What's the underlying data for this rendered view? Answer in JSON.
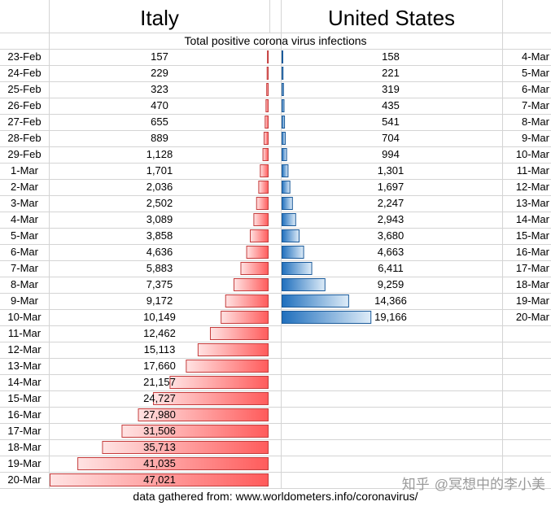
{
  "headers": {
    "left_country": "Italy",
    "right_country": "United States",
    "subtitle": "Total positive corona virus infections",
    "source": "data gathered from:  www.worldometers.info/coronavirus/"
  },
  "watermark": {
    "logo": "知乎",
    "text": "@冥想中的李小美"
  },
  "colors": {
    "italy_bar": "#ff5b5b",
    "us_bar": "#1f6fbd",
    "grid": "#d4d4d4"
  },
  "chart_data": [
    {
      "type": "bar",
      "orientation": "horizontal",
      "title": "Italy",
      "series": [
        {
          "name": "Italy",
          "values": [
            157,
            229,
            323,
            470,
            655,
            889,
            1128,
            1701,
            2036,
            2502,
            3089,
            3858,
            4636,
            5883,
            7375,
            9172,
            10149,
            12462,
            15113,
            17660,
            21157,
            24727,
            27980,
            31506,
            35713,
            41035,
            47021
          ]
        }
      ],
      "categories": [
        "23-Feb",
        "24-Feb",
        "25-Feb",
        "26-Feb",
        "27-Feb",
        "28-Feb",
        "29-Feb",
        "1-Mar",
        "2-Mar",
        "3-Mar",
        "4-Mar",
        "5-Mar",
        "6-Mar",
        "7-Mar",
        "8-Mar",
        "9-Mar",
        "10-Mar",
        "11-Mar",
        "12-Mar",
        "13-Mar",
        "14-Mar",
        "15-Mar",
        "16-Mar",
        "17-Mar",
        "18-Mar",
        "19-Mar",
        "20-Mar"
      ],
      "data_labels": [
        "157",
        "229",
        "323",
        "470",
        "655",
        "889",
        "1,128",
        "1,701",
        "2,036",
        "2,502",
        "3,089",
        "3,858",
        "4,636",
        "5,883",
        "7,375",
        "9,172",
        "10,149",
        "12,462",
        "15,113",
        "17,660",
        "21,157",
        "24,727",
        "27,980",
        "31,506",
        "35,713",
        "41,035",
        "47,021"
      ],
      "xlim": [
        0,
        47021
      ]
    },
    {
      "type": "bar",
      "orientation": "horizontal",
      "title": "United States",
      "series": [
        {
          "name": "United States",
          "values": [
            158,
            221,
            319,
            435,
            541,
            704,
            994,
            1301,
            1697,
            2247,
            2943,
            3680,
            4663,
            6411,
            9259,
            14366,
            19166
          ]
        }
      ],
      "categories": [
        "4-Mar",
        "5-Mar",
        "6-Mar",
        "7-Mar",
        "8-Mar",
        "9-Mar",
        "10-Mar",
        "11-Mar",
        "12-Mar",
        "13-Mar",
        "14-Mar",
        "15-Mar",
        "16-Mar",
        "17-Mar",
        "18-Mar",
        "19-Mar",
        "20-Mar"
      ],
      "data_labels": [
        "158",
        "221",
        "319",
        "435",
        "541",
        "704",
        "994",
        "1,301",
        "1,697",
        "2,247",
        "2,943",
        "3,680",
        "4,663",
        "6,411",
        "9,259",
        "14,366",
        "19,166"
      ],
      "xlim": [
        0,
        47021
      ]
    }
  ]
}
